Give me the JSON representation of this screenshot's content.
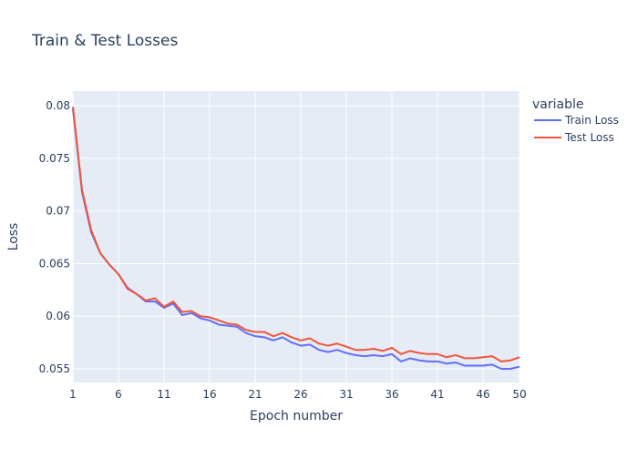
{
  "chart_data": {
    "type": "line",
    "title": "Train & Test Losses",
    "xlabel": "Epoch number",
    "ylabel": "Loss",
    "xlim": [
      1,
      50
    ],
    "ylim": [
      0.0537,
      0.0814
    ],
    "x_ticks": [
      1,
      6,
      11,
      16,
      21,
      26,
      31,
      36,
      41,
      46,
      50
    ],
    "y_ticks": [
      0.055,
      0.06,
      0.065,
      0.07,
      0.075,
      0.08
    ],
    "y_tick_labels": [
      "0.055",
      "0.06",
      "0.065",
      "0.07",
      "0.075",
      "0.08"
    ],
    "grid": true,
    "legend_title": "variable",
    "legend_position": "right",
    "plot_background": "#e5ecf6",
    "grid_color": "#ffffff",
    "x": [
      1,
      2,
      3,
      4,
      5,
      6,
      7,
      8,
      9,
      10,
      11,
      12,
      13,
      14,
      15,
      16,
      17,
      18,
      19,
      20,
      21,
      22,
      23,
      24,
      25,
      26,
      27,
      28,
      29,
      30,
      31,
      32,
      33,
      34,
      35,
      36,
      37,
      38,
      39,
      40,
      41,
      42,
      43,
      44,
      45,
      46,
      47,
      48,
      49,
      50
    ],
    "series": [
      {
        "name": "Train Loss",
        "color": "#636efa",
        "values": [
          0.0797,
          0.0718,
          0.068,
          0.066,
          0.0649,
          0.064,
          0.0627,
          0.0621,
          0.0614,
          0.0614,
          0.0608,
          0.0612,
          0.0601,
          0.0603,
          0.0598,
          0.0596,
          0.0592,
          0.0591,
          0.059,
          0.0584,
          0.0581,
          0.058,
          0.0577,
          0.058,
          0.0575,
          0.0572,
          0.0573,
          0.0568,
          0.0566,
          0.0568,
          0.0565,
          0.0563,
          0.0562,
          0.0563,
          0.0562,
          0.0564,
          0.0557,
          0.056,
          0.0558,
          0.0557,
          0.0557,
          0.0555,
          0.0556,
          0.0553,
          0.0553,
          0.0553,
          0.0554,
          0.055,
          0.055,
          0.0552
        ]
      },
      {
        "name": "Test Loss",
        "color": "#ef553b",
        "values": [
          0.0799,
          0.072,
          0.0682,
          0.066,
          0.0649,
          0.064,
          0.0626,
          0.0621,
          0.0615,
          0.0617,
          0.0609,
          0.0614,
          0.0604,
          0.0605,
          0.06,
          0.0599,
          0.0596,
          0.0593,
          0.0592,
          0.0587,
          0.0585,
          0.0585,
          0.0581,
          0.0584,
          0.058,
          0.0577,
          0.0579,
          0.0574,
          0.0572,
          0.0574,
          0.0571,
          0.0568,
          0.0568,
          0.0569,
          0.0567,
          0.057,
          0.0564,
          0.0567,
          0.0565,
          0.0564,
          0.0564,
          0.0561,
          0.0563,
          0.056,
          0.056,
          0.0561,
          0.0562,
          0.0557,
          0.0558,
          0.0561
        ]
      }
    ]
  }
}
